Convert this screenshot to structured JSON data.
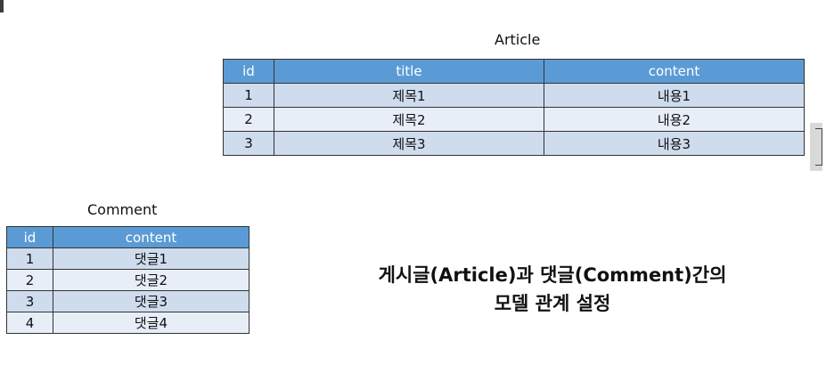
{
  "article": {
    "title": "Article",
    "columns": [
      "id",
      "title",
      "content"
    ],
    "rows": [
      [
        "1",
        "제목1",
        "내용1"
      ],
      [
        "2",
        "제목2",
        "내용2"
      ],
      [
        "3",
        "제목3",
        "내용3"
      ]
    ]
  },
  "comment": {
    "title": "Comment",
    "columns": [
      "id",
      "content"
    ],
    "rows": [
      [
        "1",
        "댓글1"
      ],
      [
        "2",
        "댓글2"
      ],
      [
        "3",
        "댓글3"
      ],
      [
        "4",
        "댓글4"
      ]
    ]
  },
  "caption": {
    "line1": "게시글(Article)과 댓글(Comment)간의",
    "line2": "모델 관계 설정"
  },
  "colors": {
    "header": "#5b9bd5",
    "row_dark": "#cfdcee",
    "row_light": "#e8eef8",
    "border": "#333333"
  }
}
